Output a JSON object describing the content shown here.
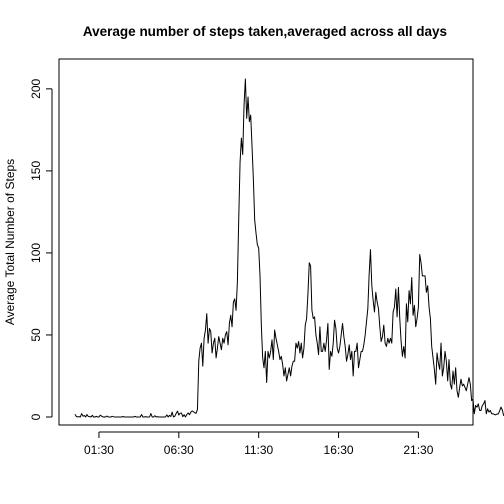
{
  "chart_data": {
    "type": "line",
    "title": "Average number of steps taken,averaged across all days",
    "xlabel": "",
    "ylabel": "Average Total Number of Steps",
    "xlim": [
      "00:00",
      "23:55"
    ],
    "ylim": [
      0,
      206
    ],
    "x_ticks": [
      "01:30",
      "06:30",
      "11:30",
      "16:30",
      "21:30"
    ],
    "y_ticks": [
      "0",
      "50",
      "100",
      "150",
      "200"
    ],
    "grid": false,
    "line_color": "#000000",
    "x_interval_minutes": 5,
    "series": [
      {
        "values": [
          1.7,
          0.3,
          0.1,
          0.2,
          0.0,
          2.1,
          0.5,
          0.9,
          0.0,
          1.5,
          0.3,
          0.2,
          0.0,
          1.0,
          0.0,
          0.0,
          0.4,
          0.0,
          0.0,
          1.1,
          0.5,
          0.0,
          0.1,
          0.0,
          0.6,
          0.0,
          0.0,
          0.0,
          0.4,
          0.1,
          0.0,
          0.0,
          0.0,
          0.0,
          0.0,
          0.0,
          0.3,
          0.0,
          0.0,
          0.0,
          0.0,
          0.0,
          0.0,
          0.0,
          0.0,
          0.4,
          0.0,
          0.0,
          0.0,
          0.0,
          1.5,
          0.0,
          0.0,
          0.2,
          0.0,
          0.0,
          0.0,
          2.1,
          0.0,
          0.0,
          0.8,
          0.0,
          0.2,
          0.0,
          0.0,
          0.0,
          0.0,
          0.0,
          0.0,
          1.3,
          0.0,
          1.0,
          0.3,
          3.0,
          0.0,
          0.5,
          2.2,
          3.6,
          1.2,
          2.3,
          2.4,
          0.2,
          1.4,
          0.0,
          1.5,
          2.5,
          1.4,
          2.9,
          3.7,
          3.2,
          2.6,
          2.3,
          4.6,
          34.0,
          42.0,
          45.0,
          31.0,
          48.0,
          53.0,
          63.0,
          45.0,
          54.0,
          52.0,
          39.0,
          45.0,
          48.0,
          36.0,
          42.0,
          49.0,
          45.0,
          41.0,
          48.0,
          45.0,
          50.0,
          52.0,
          44.0,
          57.0,
          62.0,
          55.0,
          70.0,
          72.0,
          65.0,
          82.0,
          120.0,
          155.0,
          170.0,
          160.0,
          190.0,
          206.0,
          182.0,
          195.0,
          180.0,
          184.0,
          165.0,
          145.0,
          120.0,
          112.0,
          105.0,
          103.0,
          86.0,
          56.0,
          36.0,
          30.0,
          40.0,
          21.0,
          40.0,
          36.0,
          40.0,
          47.0,
          35.0,
          53.0,
          48.0,
          44.0,
          40.0,
          35.0,
          37.0,
          32.0,
          25.0,
          30.0,
          22.0,
          26.0,
          30.0,
          25.0,
          31.0,
          34.0,
          34.0,
          45.0,
          42.0,
          46.0,
          39.0,
          45.0,
          36.0,
          42.0,
          56.0,
          60.0,
          75.0,
          94.0,
          92.0,
          65.0,
          60.0,
          61.0,
          50.0,
          45.0,
          38.0,
          55.0,
          40.0,
          40.0,
          45.0,
          40.0,
          47.0,
          57.0,
          29.0,
          40.0,
          37.0,
          45.0,
          59.0,
          54.0,
          42.0,
          39.0,
          43.0,
          50.0,
          57.0,
          49.0,
          43.0,
          34.0,
          38.0,
          44.0,
          35.0,
          40.0,
          25.0,
          40.0,
          40.0,
          45.0,
          30.0,
          35.0,
          40.0,
          40.0,
          44.0,
          50.0,
          58.0,
          66.0,
          87.0,
          102.0,
          80.0,
          71.0,
          64.0,
          76.0,
          70.0,
          66.0,
          55.0,
          46.0,
          49.0,
          56.0,
          45.0,
          43.0,
          48.0,
          45.0,
          48.0,
          45.0,
          64.0,
          67.0,
          78.0,
          61.0,
          79.0,
          60.0,
          46.0,
          37.0,
          43.0,
          36.0,
          69.0,
          58.0,
          77.0,
          69.0,
          85.0,
          62.0,
          68.0,
          55.0,
          60.0,
          67.0,
          99.0,
          94.0,
          86.0,
          86.0,
          86.0,
          76.0,
          80.0,
          67.0,
          60.0,
          43.0,
          36.0,
          29.0,
          20.0,
          39.0,
          33.0,
          29.0,
          45.0,
          25.0,
          30.0,
          40.0,
          34.0,
          22.0,
          35.0,
          20.0,
          17.0,
          28.0,
          20.0,
          30.0,
          16.0,
          12.0,
          18.0,
          23.0,
          19.0,
          20.0,
          18.0,
          16.0,
          20.0,
          24.0,
          20.0,
          10.0,
          11.0,
          2.0,
          7.0,
          6.0,
          8.0,
          4.0,
          4.0,
          7.0,
          8.0,
          10.0,
          2.0,
          5.0,
          3.0,
          4.0,
          2.0,
          2.0,
          1.6,
          1.3,
          1.8,
          1.8,
          3.6,
          6.0,
          4.4,
          1.0,
          0.6,
          0.4,
          1.1
        ]
      }
    ]
  }
}
